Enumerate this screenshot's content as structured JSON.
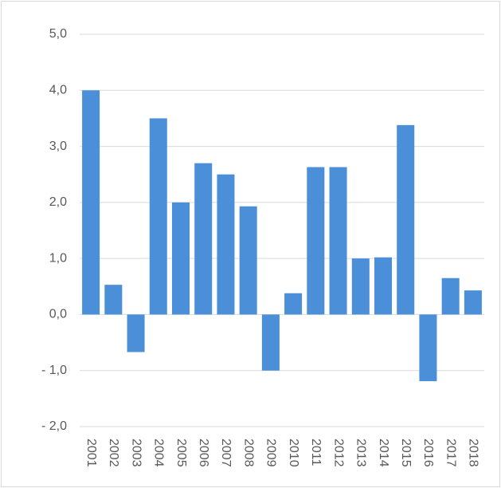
{
  "chart_data": {
    "type": "bar",
    "categories": [
      "2001",
      "2002",
      "2003",
      "2004",
      "2005",
      "2006",
      "2007",
      "2008",
      "2009",
      "2010",
      "2011",
      "2012",
      "2013",
      "2014",
      "2015",
      "2016",
      "2017",
      "2018"
    ],
    "values": [
      4.0,
      0.53,
      -0.67,
      3.5,
      2.0,
      2.7,
      2.5,
      1.93,
      -1.0,
      0.38,
      2.63,
      2.63,
      1.0,
      1.02,
      3.38,
      -1.19,
      0.65,
      0.43
    ],
    "color": "#4a8fd8",
    "ylim": [
      -2,
      5
    ],
    "yticks": [
      {
        "value": -2,
        "label": "- 2,0"
      },
      {
        "value": -1,
        "label": "- 1,0"
      },
      {
        "value": 0,
        "label": "0,0"
      },
      {
        "value": 1,
        "label": "1,0"
      },
      {
        "value": 2,
        "label": "2,0"
      },
      {
        "value": 3,
        "label": "3,0"
      },
      {
        "value": 4,
        "label": "4,0"
      },
      {
        "value": 5,
        "label": "5,0"
      }
    ],
    "grid": true
  }
}
